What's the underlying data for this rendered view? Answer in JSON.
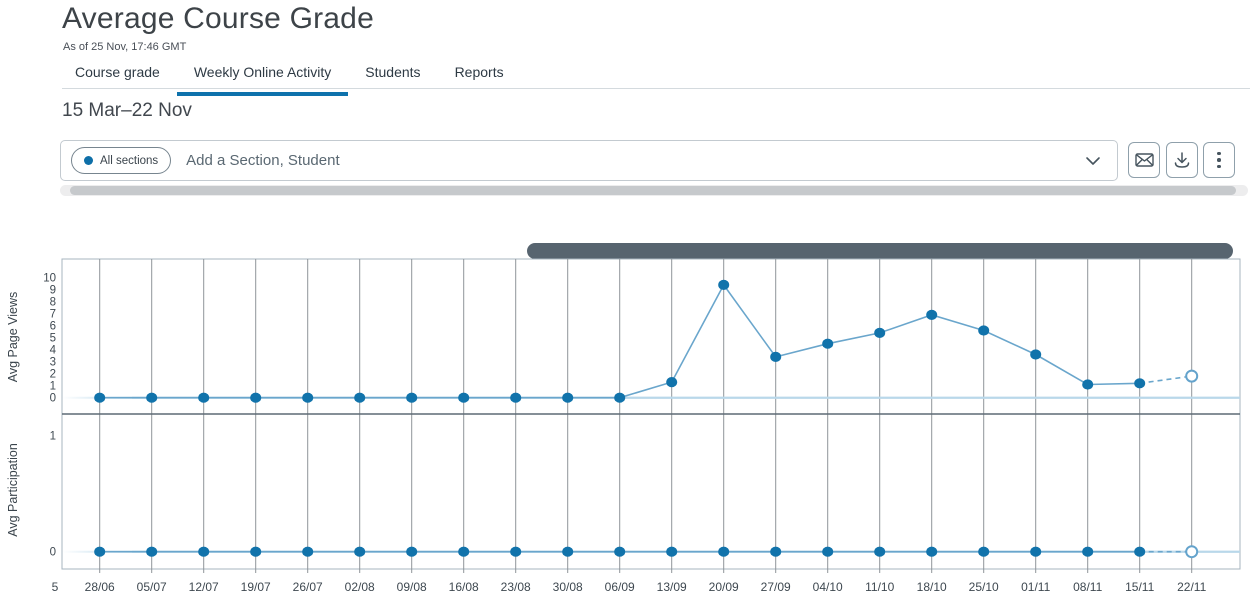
{
  "header": {
    "title": "Average Course Grade",
    "as_of": "As of 25 Nov, 17:46 GMT"
  },
  "tabs": [
    {
      "label": "Course grade",
      "active": false
    },
    {
      "label": "Weekly Online Activity",
      "active": true
    },
    {
      "label": "Students",
      "active": false
    },
    {
      "label": "Reports",
      "active": false
    }
  ],
  "date_range": "15 Mar–22 Nov",
  "filter": {
    "chip_label": "All sections",
    "placeholder": "Add a Section, Student",
    "icons": [
      "chevron-down-icon",
      "envelope-icon",
      "download-icon",
      "kebab-menu-icon"
    ]
  },
  "colors": {
    "accent_blue": "#0e72ac",
    "dot_fill": "#1173ab",
    "line_blue": "#6aa6cc",
    "open_dot_stroke": "#64a3cc",
    "zero_line": "#b9d8ea",
    "gridline": "#8f9499",
    "plot_border": "#a7b4bf",
    "chart_divider": "#5d6a75",
    "dark_scrollbar_thumb": "#57646f",
    "light_scrollbar_thumb": "#c6c9cc",
    "tab_underline": "#0e72ac"
  },
  "chart_data": [
    {
      "type": "line",
      "title": "",
      "xlabel": "",
      "ylabel": "Avg Page Views",
      "categories": [
        "28/06",
        "05/07",
        "12/07",
        "19/07",
        "26/07",
        "02/08",
        "09/08",
        "16/08",
        "23/08",
        "30/08",
        "06/09",
        "13/09",
        "20/09",
        "27/09",
        "04/10",
        "11/10",
        "18/10",
        "25/10",
        "01/11",
        "08/11",
        "15/11",
        "22/11"
      ],
      "clipped_left_label": "5",
      "values": [
        0,
        0,
        0,
        0,
        0,
        0,
        0,
        0,
        0,
        0,
        0,
        1.3,
        9.4,
        3.4,
        4.5,
        5.4,
        6.9,
        5.6,
        3.6,
        1.1,
        1.2,
        1.8
      ],
      "yticks": [
        0,
        1,
        2,
        3,
        4,
        5,
        6,
        7,
        8,
        9,
        10
      ],
      "ylim": [
        0,
        11.5
      ],
      "grid": "vertical-weekly",
      "legend": "none",
      "last_point": "open-circle with dashed connector (current incomplete week)"
    },
    {
      "type": "line",
      "title": "",
      "xlabel": "",
      "ylabel": "Avg Participation",
      "categories": [
        "28/06",
        "05/07",
        "12/07",
        "19/07",
        "26/07",
        "02/08",
        "09/08",
        "16/08",
        "23/08",
        "30/08",
        "06/09",
        "13/09",
        "20/09",
        "27/09",
        "04/10",
        "11/10",
        "18/10",
        "25/10",
        "01/11",
        "08/11",
        "15/11",
        "22/11"
      ],
      "values": [
        0,
        0,
        0,
        0,
        0,
        0,
        0,
        0,
        0,
        0,
        0,
        0,
        0,
        0,
        0,
        0,
        0,
        0,
        0,
        0,
        0,
        0
      ],
      "yticks": [
        0,
        1
      ],
      "ylim": [
        0,
        1.35
      ],
      "grid": "vertical-weekly",
      "legend": "none",
      "last_point": "open-circle with dashed connector (current incomplete week)"
    }
  ]
}
